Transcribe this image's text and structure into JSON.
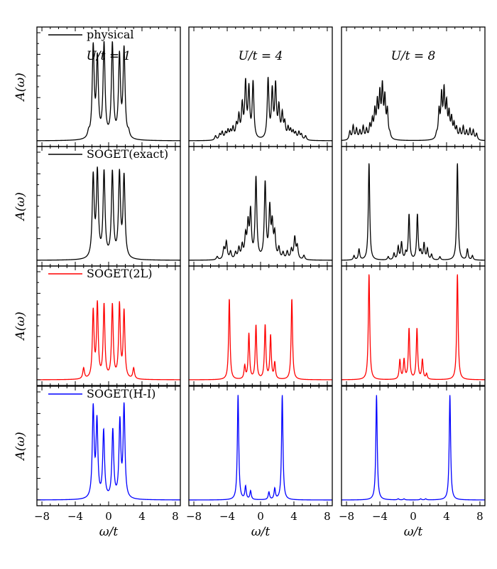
{
  "chart_data": {
    "type": "line",
    "xlabel": "ω/t",
    "ylabel": "A(ω)",
    "xlim": [
      -8.6,
      8.6
    ],
    "xticks": [
      "−8",
      "−4",
      "0",
      "4",
      "8"
    ],
    "xtick_values": [
      -8,
      -4,
      0,
      4,
      8
    ],
    "columns": [
      {
        "label": "U/t = 1",
        "U": 1
      },
      {
        "label": "U/t = 4",
        "U": 4
      },
      {
        "label": "U/t = 8",
        "U": 8
      }
    ],
    "rows": [
      {
        "name": "physical",
        "legend_label": "physical",
        "color": "#000000"
      },
      {
        "name": "SOGET(exact)",
        "legend_label": "SOGET(exact)",
        "color": "#000000"
      },
      {
        "name": "SOGET(2L)",
        "legend_label": "SOGET(2L)",
        "color": "#ff0000"
      },
      {
        "name": "SOGET(H-I)",
        "legend_label": "SOGET(H-I)",
        "color": "#0000ff"
      }
    ],
    "panels": [
      [
        {
          "width": 0.14,
          "peaks": [
            [
              -1.85,
              0.84
            ],
            [
              -1.35,
              0.72
            ],
            [
              -0.55,
              0.87
            ],
            [
              0.45,
              0.87
            ],
            [
              1.3,
              0.75
            ],
            [
              1.85,
              0.82
            ],
            [
              -2.4,
              0.05
            ],
            [
              2.4,
              0.05
            ]
          ]
        },
        {
          "width": 0.14,
          "peaks": [
            [
              -1.85,
              0.75
            ],
            [
              -1.35,
              0.78
            ],
            [
              -0.55,
              0.79
            ],
            [
              0.45,
              0.79
            ],
            [
              1.3,
              0.77
            ],
            [
              1.85,
              0.75
            ]
          ]
        },
        {
          "width": 0.12,
          "peaks": [
            [
              -3.0,
              0.1
            ],
            [
              -1.85,
              0.62
            ],
            [
              -1.35,
              0.68
            ],
            [
              -0.55,
              0.68
            ],
            [
              0.45,
              0.68
            ],
            [
              1.3,
              0.68
            ],
            [
              1.85,
              0.62
            ],
            [
              3.0,
              0.1
            ]
          ]
        },
        {
          "width": 0.13,
          "peaks": [
            [
              -1.85,
              0.83
            ],
            [
              -1.4,
              0.7
            ],
            [
              -0.6,
              0.62
            ],
            [
              0.5,
              0.63
            ],
            [
              1.35,
              0.7
            ],
            [
              1.85,
              0.85
            ]
          ]
        }
      ],
      [
        {
          "width": 0.12,
          "peaks": [
            [
              -5.4,
              0.04
            ],
            [
              -4.9,
              0.05
            ],
            [
              -4.6,
              0.07
            ],
            [
              -4.2,
              0.06
            ],
            [
              -3.9,
              0.08
            ],
            [
              -3.6,
              0.07
            ],
            [
              -3.3,
              0.1
            ],
            [
              -2.9,
              0.12
            ],
            [
              -2.6,
              0.2
            ],
            [
              -2.2,
              0.3
            ],
            [
              -1.8,
              0.5
            ],
            [
              -1.4,
              0.45
            ],
            [
              -0.9,
              0.52
            ],
            [
              0.9,
              0.55
            ],
            [
              1.4,
              0.43
            ],
            [
              1.8,
              0.48
            ],
            [
              2.2,
              0.28
            ],
            [
              2.6,
              0.22
            ],
            [
              2.9,
              0.14
            ],
            [
              3.3,
              0.1
            ],
            [
              3.6,
              0.08
            ],
            [
              3.9,
              0.07
            ],
            [
              4.2,
              0.06
            ],
            [
              4.6,
              0.07
            ],
            [
              4.9,
              0.05
            ],
            [
              5.4,
              0.04
            ]
          ]
        },
        {
          "width": 0.12,
          "peaks": [
            [
              -5.2,
              0.03
            ],
            [
              -4.4,
              0.1
            ],
            [
              -4.1,
              0.16
            ],
            [
              -3.6,
              0.07
            ],
            [
              -3.0,
              0.06
            ],
            [
              -2.6,
              0.1
            ],
            [
              -2.2,
              0.12
            ],
            [
              -1.8,
              0.2
            ],
            [
              -1.5,
              0.3
            ],
            [
              -1.2,
              0.42
            ],
            [
              -0.55,
              0.75
            ],
            [
              0.55,
              0.7
            ],
            [
              1.1,
              0.45
            ],
            [
              1.4,
              0.3
            ],
            [
              1.7,
              0.22
            ],
            [
              2.2,
              0.1
            ],
            [
              2.7,
              0.06
            ],
            [
              3.2,
              0.07
            ],
            [
              3.7,
              0.09
            ],
            [
              4.1,
              0.2
            ],
            [
              4.4,
              0.12
            ],
            [
              5.2,
              0.04
            ]
          ]
        },
        {
          "width": 0.1,
          "peaks": [
            [
              -3.75,
              0.75
            ],
            [
              -1.9,
              0.12
            ],
            [
              -1.4,
              0.42
            ],
            [
              -0.55,
              0.5
            ],
            [
              0.55,
              0.5
            ],
            [
              1.2,
              0.4
            ],
            [
              1.7,
              0.15
            ],
            [
              3.75,
              0.75
            ]
          ]
        },
        {
          "width": 0.1,
          "peaks": [
            [
              -2.7,
              0.97
            ],
            [
              -1.8,
              0.12
            ],
            [
              -1.2,
              0.08
            ],
            [
              1.0,
              0.07
            ],
            [
              1.7,
              0.1
            ],
            [
              2.6,
              0.97
            ]
          ]
        }
      ],
      [
        {
          "width": 0.11,
          "peaks": [
            [
              -7.6,
              0.08
            ],
            [
              -7.2,
              0.13
            ],
            [
              -6.8,
              0.1
            ],
            [
              -6.4,
              0.08
            ],
            [
              -6.0,
              0.12
            ],
            [
              -5.6,
              0.09
            ],
            [
              -5.2,
              0.12
            ],
            [
              -4.9,
              0.16
            ],
            [
              -4.6,
              0.24
            ],
            [
              -4.3,
              0.31
            ],
            [
              -4.0,
              0.38
            ],
            [
              -3.7,
              0.45
            ],
            [
              -3.4,
              0.35
            ],
            [
              -3.1,
              0.25
            ],
            [
              -2.8,
              0.04
            ],
            [
              2.8,
              0.04
            ],
            [
              3.1,
              0.25
            ],
            [
              3.4,
              0.38
            ],
            [
              3.7,
              0.42
            ],
            [
              4.0,
              0.3
            ],
            [
              4.3,
              0.22
            ],
            [
              4.6,
              0.18
            ],
            [
              4.9,
              0.13
            ],
            [
              5.2,
              0.1
            ],
            [
              5.6,
              0.09
            ],
            [
              6.0,
              0.12
            ],
            [
              6.4,
              0.08
            ],
            [
              6.8,
              0.1
            ],
            [
              7.2,
              0.09
            ],
            [
              7.6,
              0.06
            ]
          ]
        },
        {
          "width": 0.1,
          "peaks": [
            [
              -7.1,
              0.04
            ],
            [
              -6.5,
              0.1
            ],
            [
              -5.3,
              0.9
            ],
            [
              -3.0,
              0.03
            ],
            [
              -2.3,
              0.06
            ],
            [
              -1.8,
              0.12
            ],
            [
              -1.4,
              0.16
            ],
            [
              -0.9,
              0.06
            ],
            [
              -0.5,
              0.42
            ],
            [
              0.5,
              0.42
            ],
            [
              0.9,
              0.07
            ],
            [
              1.3,
              0.15
            ],
            [
              1.7,
              0.1
            ],
            [
              2.2,
              0.05
            ],
            [
              3.2,
              0.03
            ],
            [
              5.3,
              0.9
            ],
            [
              6.5,
              0.1
            ],
            [
              7.1,
              0.04
            ]
          ]
        },
        {
          "width": 0.1,
          "peaks": [
            [
              -5.3,
              0.98
            ],
            [
              -1.6,
              0.18
            ],
            [
              -1.1,
              0.18
            ],
            [
              -0.5,
              0.47
            ],
            [
              0.45,
              0.47
            ],
            [
              1.1,
              0.18
            ],
            [
              1.6,
              0.05
            ],
            [
              5.3,
              0.98
            ]
          ]
        },
        {
          "width": 0.1,
          "peaks": [
            [
              -4.4,
              0.97
            ],
            [
              -1.8,
              0.01
            ],
            [
              -1.1,
              0.01
            ],
            [
              0.9,
              0.01
            ],
            [
              1.5,
              0.01
            ],
            [
              4.4,
              0.97
            ]
          ]
        }
      ]
    ]
  }
}
